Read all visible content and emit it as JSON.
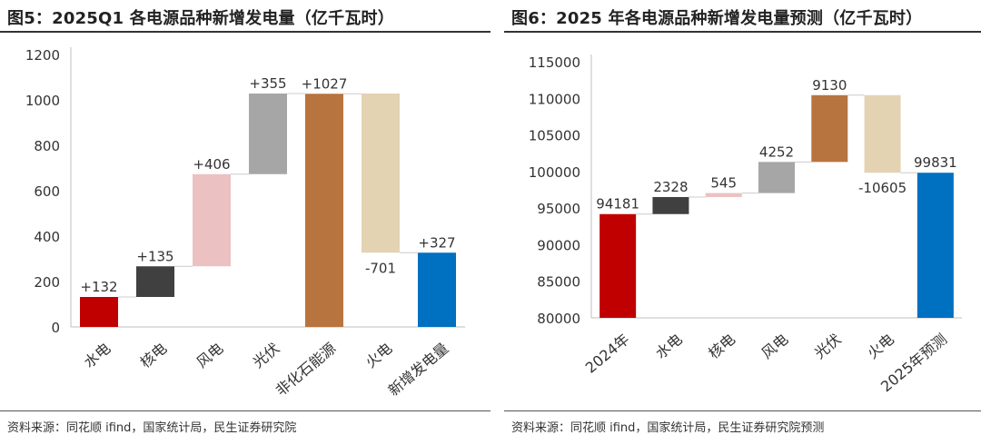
{
  "chart_data": [
    {
      "type": "bar",
      "subtype": "waterfall",
      "title": "图5：2025Q1 各电源品种新增发电量（亿千瓦时）",
      "source": "资料来源：同花顺 ifind，国家统计局，民生证券研究院",
      "ylim": [
        0,
        1200
      ],
      "yticks": [
        0,
        200,
        400,
        600,
        800,
        1000,
        1200
      ],
      "categories": [
        "水电",
        "核电",
        "风电",
        "光伏",
        "非化石能源",
        "火电",
        "新增发电量"
      ],
      "start": [
        0,
        132,
        267,
        673,
        0,
        1028,
        0
      ],
      "end": [
        132,
        267,
        673,
        1028,
        1027,
        327,
        327
      ],
      "labels": [
        "+132",
        "+135",
        "+406",
        "+355",
        "+1027",
        "-701",
        "+327"
      ],
      "colors": [
        "#C00000",
        "#404040",
        "#EBC1C1",
        "#A6A6A6",
        "#B8743F",
        "#E3D3B3",
        "#0070C0"
      ]
    },
    {
      "type": "bar",
      "subtype": "waterfall",
      "title": "图6：2025 年各电源品种新增发电量预测（亿千瓦时）",
      "source": "资料来源：同花顺 ifind，国家统计局，民生证券研究院预测",
      "ylim": [
        80000,
        115000
      ],
      "yticks": [
        80000,
        85000,
        90000,
        95000,
        100000,
        105000,
        110000,
        115000
      ],
      "categories": [
        "2024年",
        "水电",
        "核电",
        "风电",
        "光伏",
        "火电",
        "2025年预测"
      ],
      "start": [
        80000,
        94181,
        96509,
        97054,
        101306,
        110436,
        80000
      ],
      "end": [
        94181,
        96509,
        97054,
        101306,
        110436,
        99831,
        99831
      ],
      "labels": [
        "94181",
        "2328",
        "545",
        "4252",
        "9130",
        "-10605",
        "99831"
      ],
      "colors": [
        "#C00000",
        "#404040",
        "#EBC1C1",
        "#A6A6A6",
        "#B8743F",
        "#E3D3B3",
        "#0070C0"
      ]
    }
  ]
}
